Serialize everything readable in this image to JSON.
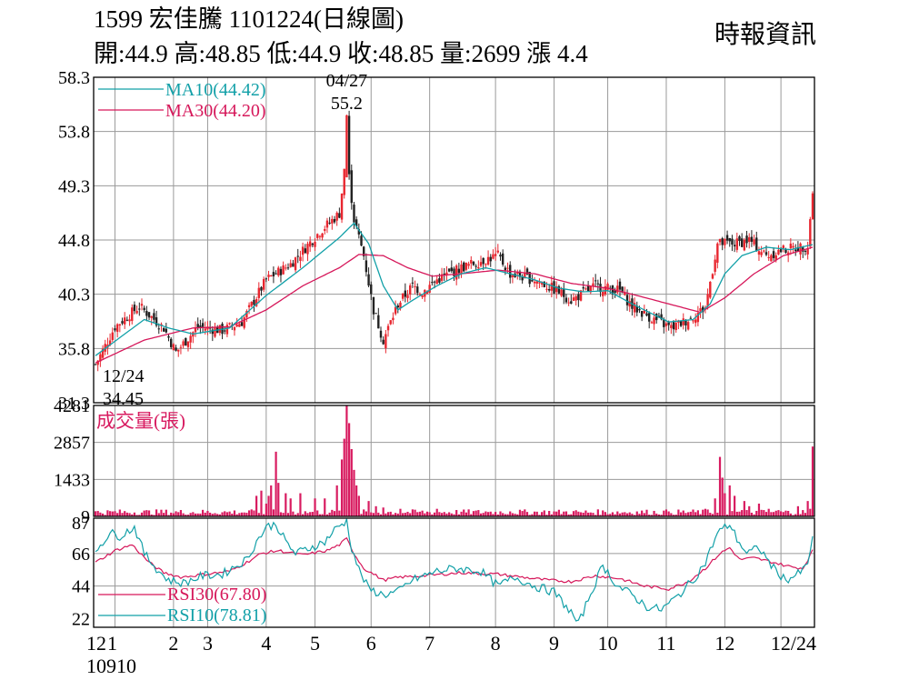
{
  "header": {
    "title": "1599 宏佳騰 1101224(日線圖)",
    "ohlc": "開:44.9 高:48.85 低:44.9 收:48.85 量:2699 漲 4.4",
    "source": "時報資訊"
  },
  "colors": {
    "up": "#e8262f",
    "down": "#222222",
    "ma10": "#12a0a8",
    "ma30": "#d6175a",
    "volume": "#d81b60",
    "rsi10": "#12a0a8",
    "rsi30": "#d6175a",
    "grid": "#9a9a9a"
  },
  "chart_data": [
    {
      "type": "candlestick",
      "panel": "price",
      "yticks": [
        58.3,
        53.8,
        49.3,
        44.8,
        40.3,
        35.8,
        31.3
      ],
      "ylim": [
        31.3,
        58.3
      ],
      "legend": [
        {
          "name": "MA10(44.42)",
          "color": "#12a0a8"
        },
        {
          "name": "MA30(44.20)",
          "color": "#d6175a"
        }
      ],
      "annotations": {
        "high_date": "04/27",
        "high_value": "55.2",
        "low_date": "12/24",
        "low_value": "34.45"
      },
      "anchors": [
        [
          0,
          34.45
        ],
        [
          8,
          37.6
        ],
        [
          18,
          39.3
        ],
        [
          28,
          37.5
        ],
        [
          33,
          35.5
        ],
        [
          42,
          37.6
        ],
        [
          52,
          37.3
        ],
        [
          60,
          38.0
        ],
        [
          70,
          41.5
        ],
        [
          80,
          42.8
        ],
        [
          92,
          45.5
        ],
        [
          100,
          47.0
        ],
        [
          102,
          50.5
        ],
        [
          103,
          55.2
        ],
        [
          104,
          50.0
        ],
        [
          106,
          46.5
        ],
        [
          110,
          43.5
        ],
        [
          114,
          39.0
        ],
        [
          118,
          36.5
        ],
        [
          124,
          39.5
        ],
        [
          130,
          41.0
        ],
        [
          134,
          40.5
        ],
        [
          140,
          41.5
        ],
        [
          150,
          42.5
        ],
        [
          160,
          43.2
        ],
        [
          165,
          43.5
        ],
        [
          170,
          42.0
        ],
        [
          180,
          41.5
        ],
        [
          190,
          40.5
        ],
        [
          195,
          39.8
        ],
        [
          205,
          41.0
        ],
        [
          215,
          40.6
        ],
        [
          220,
          39.3
        ],
        [
          228,
          38.3
        ],
        [
          236,
          37.5
        ],
        [
          244,
          38.3
        ],
        [
          250,
          39.2
        ],
        [
          255,
          44.5
        ],
        [
          262,
          44.5
        ],
        [
          268,
          44.8
        ],
        [
          275,
          43.5
        ],
        [
          282,
          44.0
        ],
        [
          292,
          44.3
        ],
        [
          294,
          48.85
        ]
      ],
      "ma10_anchors": [
        [
          0,
          35.2
        ],
        [
          20,
          38.2
        ],
        [
          30,
          37.5
        ],
        [
          40,
          37.0
        ],
        [
          55,
          37.5
        ],
        [
          70,
          40.2
        ],
        [
          85,
          42.5
        ],
        [
          100,
          45.0
        ],
        [
          106,
          46.2
        ],
        [
          112,
          44.5
        ],
        [
          118,
          41.0
        ],
        [
          124,
          39.0
        ],
        [
          130,
          39.8
        ],
        [
          140,
          41.0
        ],
        [
          150,
          42.0
        ],
        [
          160,
          42.5
        ],
        [
          170,
          42.0
        ],
        [
          180,
          41.5
        ],
        [
          190,
          40.8
        ],
        [
          200,
          40.5
        ],
        [
          210,
          40.6
        ],
        [
          220,
          39.5
        ],
        [
          235,
          38.0
        ],
        [
          245,
          38.2
        ],
        [
          252,
          39.5
        ],
        [
          258,
          42.0
        ],
        [
          265,
          43.5
        ],
        [
          275,
          44.2
        ],
        [
          285,
          44.0
        ],
        [
          294,
          44.42
        ]
      ],
      "ma30_anchors": [
        [
          0,
          34.6
        ],
        [
          20,
          36.5
        ],
        [
          40,
          37.5
        ],
        [
          55,
          37.6
        ],
        [
          70,
          39.0
        ],
        [
          85,
          41.0
        ],
        [
          100,
          42.5
        ],
        [
          108,
          43.6
        ],
        [
          118,
          43.5
        ],
        [
          128,
          42.5
        ],
        [
          138,
          41.8
        ],
        [
          150,
          42.0
        ],
        [
          165,
          42.3
        ],
        [
          180,
          42.0
        ],
        [
          195,
          41.2
        ],
        [
          210,
          40.8
        ],
        [
          220,
          40.3
        ],
        [
          235,
          39.5
        ],
        [
          248,
          38.8
        ],
        [
          258,
          40.0
        ],
        [
          270,
          42.0
        ],
        [
          282,
          43.5
        ],
        [
          294,
          44.2
        ]
      ]
    },
    {
      "type": "bar",
      "panel": "volume",
      "title": "成交量(張)",
      "yticks": [
        4281,
        2857,
        1433,
        9
      ],
      "ylim": [
        9,
        4281
      ],
      "spikes": [
        [
          66,
          800
        ],
        [
          68,
          1000
        ],
        [
          70,
          500
        ],
        [
          71,
          800
        ],
        [
          72,
          1200
        ],
        [
          74,
          2500
        ],
        [
          75,
          1300
        ],
        [
          78,
          900
        ],
        [
          80,
          700
        ],
        [
          84,
          900
        ],
        [
          90,
          700
        ],
        [
          94,
          700
        ],
        [
          99,
          1200
        ],
        [
          101,
          2200
        ],
        [
          102,
          3000
        ],
        [
          103,
          4281
        ],
        [
          104,
          3600
        ],
        [
          105,
          2600
        ],
        [
          106,
          1800
        ],
        [
          107,
          1200
        ],
        [
          108,
          800
        ],
        [
          112,
          600
        ],
        [
          115,
          400
        ],
        [
          118,
          350
        ],
        [
          125,
          300
        ],
        [
          140,
          300
        ],
        [
          160,
          200
        ],
        [
          170,
          200
        ],
        [
          200,
          150
        ],
        [
          235,
          200
        ],
        [
          250,
          300
        ],
        [
          254,
          700
        ],
        [
          256,
          2300
        ],
        [
          257,
          1500
        ],
        [
          258,
          900
        ],
        [
          260,
          1200
        ],
        [
          262,
          800
        ],
        [
          266,
          600
        ],
        [
          268,
          400
        ],
        [
          272,
          500
        ],
        [
          276,
          300
        ],
        [
          280,
          250
        ],
        [
          288,
          400
        ],
        [
          292,
          600
        ],
        [
          293,
          300
        ],
        [
          294,
          2699
        ]
      ]
    },
    {
      "type": "line",
      "panel": "rsi",
      "yticks": [
        87,
        66,
        44,
        22
      ],
      "ylim": [
        16,
        90
      ],
      "series": [
        {
          "name": "RSI30(67.80)",
          "color": "#d6175a",
          "anchors": [
            [
              0,
              60
            ],
            [
              8,
              68
            ],
            [
              15,
              72
            ],
            [
              22,
              60
            ],
            [
              28,
              53
            ],
            [
              35,
              50
            ],
            [
              45,
              52
            ],
            [
              55,
              54
            ],
            [
              62,
              60
            ],
            [
              68,
              66
            ],
            [
              75,
              68
            ],
            [
              85,
              65
            ],
            [
              95,
              68
            ],
            [
              100,
              72
            ],
            [
              103,
              76
            ],
            [
              106,
              66
            ],
            [
              110,
              56
            ],
            [
              118,
              48
            ],
            [
              125,
              50
            ],
            [
              135,
              51
            ],
            [
              150,
              53
            ],
            [
              165,
              52
            ],
            [
              175,
              50
            ],
            [
              185,
              48
            ],
            [
              195,
              47
            ],
            [
              205,
              51
            ],
            [
              215,
              49
            ],
            [
              225,
              44
            ],
            [
              235,
              42
            ],
            [
              243,
              47
            ],
            [
              250,
              56
            ],
            [
              256,
              66
            ],
            [
              260,
              70
            ],
            [
              264,
              62
            ],
            [
              270,
              63
            ],
            [
              278,
              60
            ],
            [
              285,
              57
            ],
            [
              290,
              56
            ],
            [
              294,
              67.8
            ]
          ]
        },
        {
          "name": "RSI10(78.81)",
          "color": "#12a0a8",
          "anchors": [
            [
              0,
              68
            ],
            [
              6,
              80
            ],
            [
              10,
              78
            ],
            [
              16,
              84
            ],
            [
              20,
              66
            ],
            [
              26,
              54
            ],
            [
              30,
              48
            ],
            [
              36,
              46
            ],
            [
              44,
              51
            ],
            [
              52,
              52
            ],
            [
              58,
              58
            ],
            [
              62,
              62
            ],
            [
              66,
              74
            ],
            [
              70,
              84
            ],
            [
              74,
              86
            ],
            [
              78,
              74
            ],
            [
              82,
              66
            ],
            [
              88,
              70
            ],
            [
              94,
              74
            ],
            [
              98,
              82
            ],
            [
              101,
              86
            ],
            [
              103,
              88
            ],
            [
              105,
              70
            ],
            [
              108,
              55
            ],
            [
              112,
              42
            ],
            [
              118,
              38
            ],
            [
              124,
              40
            ],
            [
              130,
              48
            ],
            [
              140,
              54
            ],
            [
              148,
              56
            ],
            [
              158,
              54
            ],
            [
              165,
              44
            ],
            [
              172,
              50
            ],
            [
              180,
              44
            ],
            [
              188,
              40
            ],
            [
              195,
              26
            ],
            [
              198,
              18
            ],
            [
              202,
              35
            ],
            [
              208,
              58
            ],
            [
              214,
              44
            ],
            [
              220,
              38
            ],
            [
              226,
              30
            ],
            [
              232,
              28
            ],
            [
              238,
              36
            ],
            [
              245,
              48
            ],
            [
              250,
              60
            ],
            [
              255,
              80
            ],
            [
              260,
              86
            ],
            [
              263,
              76
            ],
            [
              267,
              66
            ],
            [
              272,
              70
            ],
            [
              278,
              56
            ],
            [
              283,
              48
            ],
            [
              288,
              52
            ],
            [
              292,
              58
            ],
            [
              294,
              78.81
            ]
          ]
        }
      ]
    }
  ],
  "x_axis": {
    "labels": [
      "12",
      "1",
      "2",
      "3",
      "4",
      "5",
      "6",
      "7",
      "8",
      "9",
      "10",
      "11",
      "12",
      "12/24"
    ],
    "label_bars": [
      0,
      8,
      32,
      46,
      70,
      90,
      113,
      137,
      164,
      188,
      210,
      234,
      258,
      281
    ],
    "year_label": "10910",
    "total_bars": 295
  }
}
